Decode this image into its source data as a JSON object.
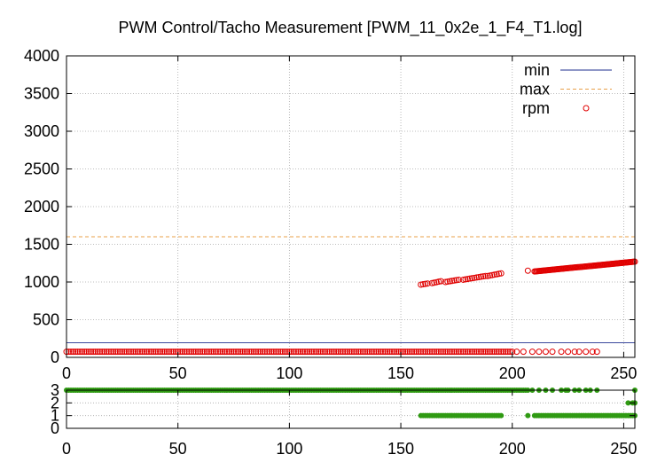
{
  "chart_data": [
    {
      "type": "scatter",
      "title": "PWM Control/Tacho Measurement [PWM_11_0x2e_1_F4_T1.log]",
      "xlabel": "",
      "ylabel": "",
      "xlim": [
        0,
        255
      ],
      "ylim": [
        0,
        4000
      ],
      "xticks": [
        0,
        50,
        100,
        150,
        200,
        250
      ],
      "yticks": [
        0,
        500,
        1000,
        1500,
        2000,
        2500,
        3000,
        3500,
        4000
      ],
      "grid": true,
      "legend_position": "top-right",
      "series": [
        {
          "name": "min",
          "kind": "line",
          "color": "#1f2f8f",
          "y": 195
        },
        {
          "name": "max",
          "kind": "line",
          "dash": "dashed",
          "color": "#e8a04a",
          "y": 1600
        },
        {
          "name": "rpm",
          "kind": "points",
          "marker": "circle",
          "color": "#e00000",
          "segments": [
            {
              "x_from": 0,
              "x_to": 200,
              "step": 1,
              "y_from": 75,
              "y_to": 75
            },
            {
              "x_from": 159,
              "x_to": 162,
              "step": 1,
              "y_from": 965,
              "y_to": 980
            },
            {
              "x_from": 164,
              "x_to": 168,
              "step": 1,
              "y_from": 985,
              "y_to": 1010
            },
            {
              "x_from": 170,
              "x_to": 176,
              "step": 1,
              "y_from": 1000,
              "y_to": 1030
            },
            {
              "x_from": 178,
              "x_to": 188,
              "step": 1,
              "y_from": 1030,
              "y_to": 1080
            },
            {
              "x_from": 189,
              "x_to": 195,
              "step": 1,
              "y_from": 1080,
              "y_to": 1115
            },
            {
              "x_from": 207,
              "x_to": 207,
              "step": 1,
              "y_from": 1150,
              "y_to": 1150
            },
            {
              "x_from": 210,
              "x_to": 255,
              "step": 0.5,
              "y_from": 1140,
              "y_to": 1270
            }
          ],
          "extra_points": [
            [
              202,
              75
            ],
            [
              205,
              75
            ],
            [
              209,
              75
            ],
            [
              212,
              75
            ],
            [
              215,
              75
            ],
            [
              218,
              75
            ],
            [
              222,
              75
            ],
            [
              225,
              75
            ],
            [
              228,
              75
            ],
            [
              230,
              75
            ],
            [
              233,
              75
            ],
            [
              236,
              75
            ],
            [
              238,
              75
            ]
          ]
        }
      ]
    },
    {
      "type": "scatter",
      "title": "",
      "xlim": [
        0,
        255
      ],
      "ylim": [
        0,
        3
      ],
      "xticks": [
        0,
        50,
        100,
        150,
        200,
        250
      ],
      "yticks": [
        0,
        1,
        2,
        3
      ],
      "grid": true,
      "series": [
        {
          "name": "",
          "kind": "points",
          "marker": "dot",
          "color": "#2f9a12",
          "segments": [
            {
              "x_from": 0,
              "x_to": 207,
              "step": 1,
              "y_from": 3,
              "y_to": 3
            },
            {
              "x_from": 159,
              "x_to": 195,
              "step": 1,
              "y_from": 1,
              "y_to": 1
            },
            {
              "x_from": 210,
              "x_to": 255,
              "step": 1,
              "y_from": 1,
              "y_to": 1
            }
          ],
          "extra_points": [
            [
              209,
              3
            ],
            [
              212,
              3
            ],
            [
              215,
              3
            ],
            [
              218,
              3
            ],
            [
              222,
              3
            ],
            [
              224,
              3
            ],
            [
              225,
              3
            ],
            [
              228,
              3
            ],
            [
              230,
              3
            ],
            [
              233,
              3
            ],
            [
              235,
              3
            ],
            [
              238,
              3
            ],
            [
              252,
              2
            ],
            [
              254,
              2
            ],
            [
              255,
              2
            ],
            [
              255,
              3
            ],
            [
              207,
              1
            ]
          ]
        }
      ]
    }
  ]
}
